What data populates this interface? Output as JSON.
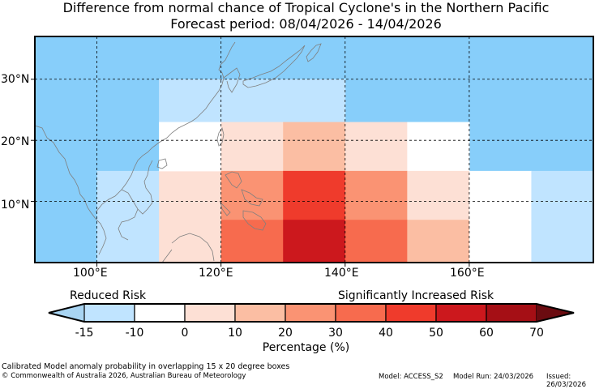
{
  "title": "Difference from normal chance of Tropical Cyclone's in the Northern Pacific",
  "subtitle": "Forecast period: 08/04/2026 - 14/04/2026",
  "axes": {
    "y_labels": [
      "30°N",
      "20°N",
      "10°N"
    ],
    "x_labels": [
      "100°E",
      "120°E",
      "140°E",
      "160°E"
    ]
  },
  "legend": {
    "left_label": "Reduced Risk",
    "right_label": "Significantly Increased Risk",
    "tick_labels": [
      "-15",
      "-10",
      "0",
      "10",
      "20",
      "30",
      "40",
      "50",
      "60",
      "70"
    ],
    "xlabel": "Percentage (%)",
    "colors": [
      "#a8d4f2",
      "#c0e4ff",
      "#ffffff",
      "#fde0d5",
      "#fbbea3",
      "#fa9373",
      "#f76b4e",
      "#ef3b2c",
      "#cc181d",
      "#a50f15",
      "#6b0b10"
    ]
  },
  "footer": {
    "note": "Calibrated Model anomaly probability in overlapping 15 x 20 degree boxes",
    "copyright": "© Commonwealth of Australia 2026, Australian Bureau of Meteorology",
    "model": "Model: ACCESS_S2",
    "run": "Model Run: 24/03/2026",
    "issued": "Issued: 26/03/2026"
  },
  "colors": {
    "background": "#87cefa",
    "grid": "#000000",
    "coast": "#7f7f7f"
  },
  "chart_data": {
    "type": "heatmap",
    "units": "percentage difference (%)",
    "x_range": [
      90,
      180
    ],
    "y_range": [
      0,
      37
    ],
    "background_color": "#87cefa",
    "boxes": [
      {
        "lon": [
          110,
          140
        ],
        "lat": [
          23,
          30
        ],
        "color": "#c0e4ff"
      },
      {
        "lon": [
          100,
          110
        ],
        "lat": [
          0,
          15
        ],
        "color": "#c0e4ff"
      },
      {
        "lon": [
          110,
          120
        ],
        "lat": [
          0,
          15
        ],
        "color": "#fde0d5"
      },
      {
        "lon": [
          110,
          120
        ],
        "lat": [
          15,
          23
        ],
        "color": "#ffffff"
      },
      {
        "lon": [
          120,
          130
        ],
        "lat": [
          15,
          23
        ],
        "color": "#fde0d5"
      },
      {
        "lon": [
          130,
          140
        ],
        "lat": [
          15,
          23
        ],
        "color": "#fbbea3"
      },
      {
        "lon": [
          140,
          150
        ],
        "lat": [
          15,
          23
        ],
        "color": "#fde0d5"
      },
      {
        "lon": [
          150,
          160
        ],
        "lat": [
          15,
          23
        ],
        "color": "#ffffff"
      },
      {
        "lon": [
          120,
          130
        ],
        "lat": [
          7,
          15
        ],
        "color": "#fa9373"
      },
      {
        "lon": [
          130,
          140
        ],
        "lat": [
          7,
          15
        ],
        "color": "#ef3b2c"
      },
      {
        "lon": [
          140,
          150
        ],
        "lat": [
          7,
          15
        ],
        "color": "#fa9373"
      },
      {
        "lon": [
          150,
          160
        ],
        "lat": [
          7,
          15
        ],
        "color": "#fde0d5"
      },
      {
        "lon": [
          160,
          170
        ],
        "lat": [
          7,
          15
        ],
        "color": "#ffffff"
      },
      {
        "lon": [
          170,
          180
        ],
        "lat": [
          7,
          15
        ],
        "color": "#c0e4ff"
      },
      {
        "lon": [
          120,
          130
        ],
        "lat": [
          0,
          7
        ],
        "color": "#f76b4e"
      },
      {
        "lon": [
          130,
          140
        ],
        "lat": [
          0,
          7
        ],
        "color": "#cc181d"
      },
      {
        "lon": [
          140,
          150
        ],
        "lat": [
          0,
          7
        ],
        "color": "#f76b4e"
      },
      {
        "lon": [
          150,
          160
        ],
        "lat": [
          0,
          7
        ],
        "color": "#fbbea3"
      },
      {
        "lon": [
          160,
          170
        ],
        "lat": [
          0,
          7
        ],
        "color": "#ffffff"
      },
      {
        "lon": [
          170,
          180
        ],
        "lat": [
          0,
          7
        ],
        "color": "#c0e4ff"
      }
    ],
    "gridlines_lon": [
      100,
      120,
      140,
      160
    ],
    "gridlines_lat": [
      10,
      20,
      30
    ],
    "grid": true
  }
}
